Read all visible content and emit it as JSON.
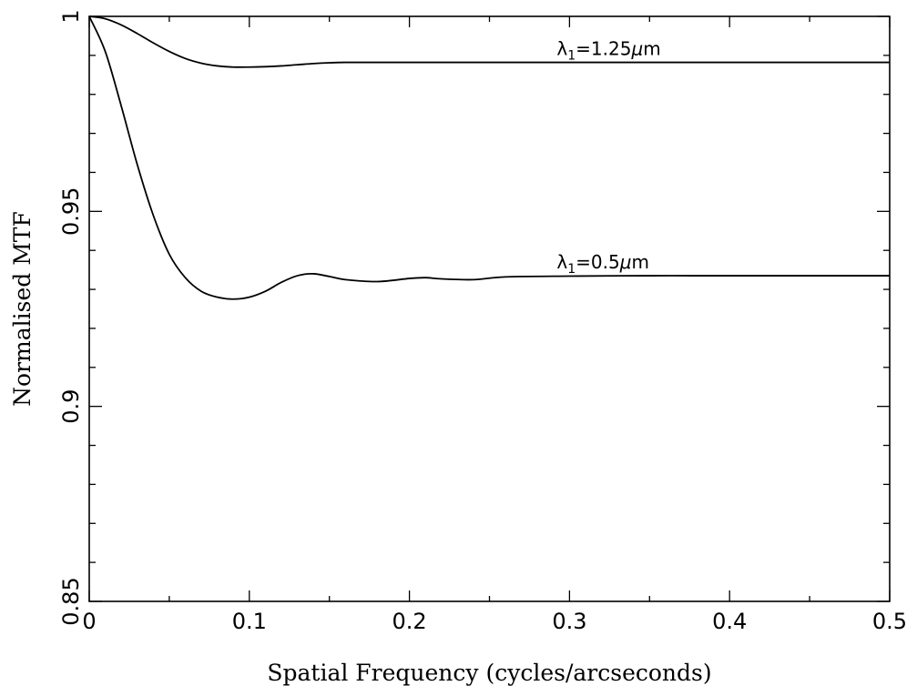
{
  "chart_data": {
    "type": "line",
    "title": "",
    "xlabel": "Spatial Frequency (cycles/arcseconds)",
    "ylabel": "Normalised MTF",
    "xlim": [
      0,
      0.5
    ],
    "ylim": [
      0.85,
      1.0
    ],
    "x_ticks": [
      0,
      0.1,
      0.2,
      0.3,
      0.4,
      0.5
    ],
    "x_tick_labels": [
      "0",
      "0.1",
      "0.2",
      "0.3",
      "0.4",
      "0.5"
    ],
    "y_ticks": [
      0.85,
      0.9,
      0.95,
      1.0
    ],
    "y_tick_labels": [
      "0.85",
      "0.9",
      "0.95",
      "1"
    ],
    "grid": false,
    "series": [
      {
        "x": [
          0,
          0.01,
          0.02,
          0.03,
          0.04,
          0.05,
          0.06,
          0.07,
          0.08,
          0.09,
          0.1,
          0.11,
          0.12,
          0.13,
          0.14,
          0.15,
          0.16,
          0.18,
          0.2,
          0.25,
          0.3,
          0.35,
          0.4,
          0.45,
          0.5
        ],
        "values": [
          1.0,
          0.9994,
          0.9978,
          0.9956,
          0.9932,
          0.991,
          0.9892,
          0.988,
          0.9873,
          0.987,
          0.987,
          0.9871,
          0.9873,
          0.9876,
          0.9879,
          0.9881,
          0.9882,
          0.9882,
          0.9882,
          0.9882,
          0.9882,
          0.9882,
          0.9882,
          0.9882,
          0.9882
        ],
        "annotation": {
          "symbol": "λ",
          "subscript": "1",
          "text": "=1.25",
          "mu": "μ",
          "unit": "m"
        }
      },
      {
        "x": [
          0,
          0.01,
          0.02,
          0.03,
          0.04,
          0.05,
          0.06,
          0.07,
          0.08,
          0.09,
          0.1,
          0.11,
          0.12,
          0.13,
          0.14,
          0.15,
          0.16,
          0.18,
          0.2,
          0.21,
          0.22,
          0.24,
          0.26,
          0.3,
          0.35,
          0.4,
          0.45,
          0.5
        ],
        "values": [
          1.0,
          0.991,
          0.977,
          0.962,
          0.949,
          0.939,
          0.933,
          0.9295,
          0.928,
          0.9275,
          0.928,
          0.9295,
          0.9318,
          0.9335,
          0.934,
          0.9333,
          0.9325,
          0.932,
          0.9328,
          0.933,
          0.9327,
          0.9325,
          0.9332,
          0.9334,
          0.9335,
          0.9335,
          0.9335,
          0.9335
        ],
        "annotation": {
          "symbol": "λ",
          "subscript": "1",
          "text": "=0.5",
          "mu": "μ",
          "unit": "m"
        }
      }
    ]
  }
}
